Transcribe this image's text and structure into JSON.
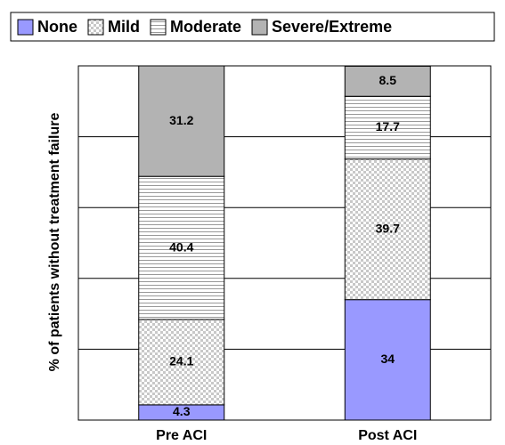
{
  "chart_data": {
    "type": "stacked_bar",
    "y_label": "% of patients without treatment failure",
    "categories": [
      "Pre ACI",
      "Post ACI"
    ],
    "series": [
      {
        "name": "None",
        "color": "#9999ff",
        "pattern": "solid",
        "values": [
          4.3,
          34
        ]
      },
      {
        "name": "Mild",
        "color": "#d9d9d9",
        "pattern": "dots",
        "values": [
          24.1,
          39.7
        ]
      },
      {
        "name": "Moderate",
        "color": "#ffffff",
        "pattern": "hlines",
        "values": [
          40.4,
          17.7
        ]
      },
      {
        "name": "Severe/Extreme",
        "color": "#b3b3b3",
        "pattern": "solid",
        "values": [
          31.2,
          8.5
        ]
      }
    ],
    "ylim": [
      0,
      100
    ],
    "yticks": [
      0,
      20,
      40,
      60,
      80,
      100
    ],
    "grid": true
  }
}
